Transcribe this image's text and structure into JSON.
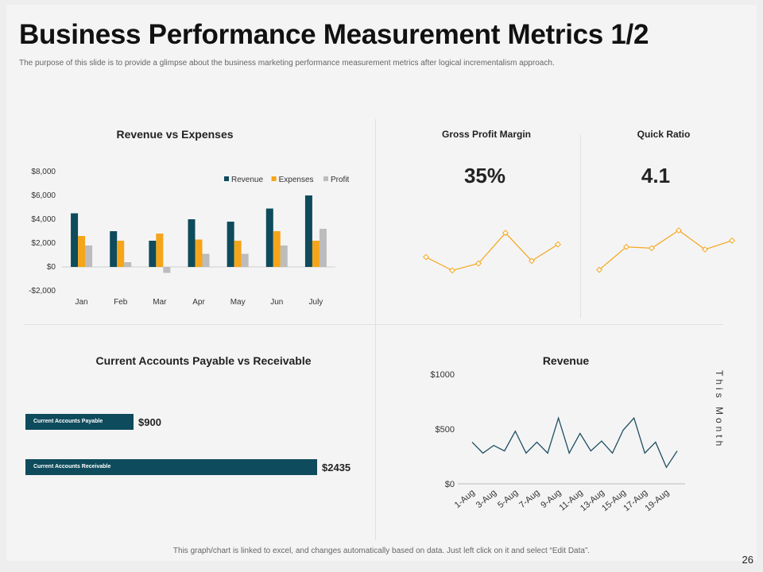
{
  "header": {
    "title": "Business Performance Measurement Metrics 1/2",
    "subtitle": "The purpose of this slide is to provide a glimpse about the business marketing performance measurement metrics after  logical incrementalism approach."
  },
  "panels": {
    "revenue_vs_expenses": "Revenue vs Expenses",
    "gross_profit_margin": "Gross Profit Margin",
    "quick_ratio": "Quick Ratio",
    "payable_vs_receivable": "Current Accounts Payable vs Receivable",
    "revenue": "Revenue"
  },
  "kpis": {
    "gross_profit_margin_value": "35%",
    "quick_ratio_value": "4.1"
  },
  "side_label": "This Month",
  "footer": {
    "note": "This graph/chart is linked to excel, and changes automatically based on data. Just left click on it and select “Edit Data”.",
    "page_number": "26"
  },
  "colors": {
    "revenue": "#0e4b5c",
    "expenses": "#f5a51a",
    "profit": "#bcbcbc",
    "sparkline": "#f5a51a",
    "revenue_line": "#1f4e63"
  },
  "chart_data": [
    {
      "id": "revenue_vs_expenses",
      "type": "bar",
      "title": "Revenue vs Expenses",
      "categories": [
        "Jan",
        "Feb",
        "Mar",
        "Apr",
        "May",
        "Jun",
        "July"
      ],
      "series": [
        {
          "name": "Revenue",
          "values": [
            4500,
            3000,
            2200,
            4000,
            3800,
            4900,
            6000
          ]
        },
        {
          "name": "Expenses",
          "values": [
            2600,
            2200,
            2800,
            2300,
            2200,
            3000,
            2200
          ]
        },
        {
          "name": "Profit",
          "values": [
            1800,
            400,
            -500,
            1100,
            1100,
            1800,
            3200
          ]
        }
      ],
      "ylim": [
        -2000,
        8000
      ],
      "yticks": [
        -2000,
        0,
        2000,
        4000,
        6000,
        8000
      ],
      "ytick_labels": [
        "-$2,000",
        "$0",
        "$2,000",
        "$4,000",
        "$6,000",
        "$8,000"
      ],
      "legend": "top-right",
      "grid": false
    },
    {
      "id": "gross_profit_margin_trend",
      "type": "line",
      "y": [
        2.3,
        0.2,
        1.3,
        6.1,
        1.7,
        4.3
      ],
      "marker": "diamond"
    },
    {
      "id": "quick_ratio_trend",
      "type": "line",
      "y": [
        0.3,
        3.9,
        3.7,
        6.5,
        3.5,
        4.9
      ],
      "marker": "diamond"
    },
    {
      "id": "payable_vs_receivable",
      "type": "bar",
      "orientation": "horizontal",
      "categories": [
        "Current Accounts  Payable",
        "Current Accounts  Receivable"
      ],
      "values": [
        900,
        2435
      ],
      "value_labels": [
        "$900",
        "$2435"
      ]
    },
    {
      "id": "revenue_daily",
      "type": "line",
      "title": "Revenue",
      "x_labels": [
        "1-Aug",
        "3-Aug",
        "5-Aug",
        "7-Aug",
        "9-Aug",
        "11-Aug",
        "13-Aug",
        "15-Aug",
        "17-Aug",
        "19-Aug"
      ],
      "y": [
        380,
        280,
        350,
        300,
        480,
        280,
        380,
        280,
        600,
        280,
        460,
        300,
        390,
        280,
        490,
        600,
        280,
        380,
        150,
        300
      ],
      "ylim": [
        0,
        1000
      ],
      "yticks": [
        0,
        500,
        1000
      ],
      "ytick_labels": [
        "$0",
        "$500",
        "$1000"
      ],
      "grid": false
    }
  ]
}
